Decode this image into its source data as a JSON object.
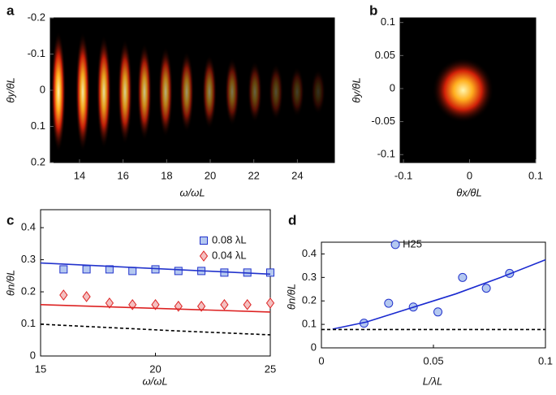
{
  "chart_data": [
    {
      "type": "heatmap",
      "panel": "a",
      "x_label": "ω/ωL",
      "y_label": "θy/θL",
      "xlim": [
        12.66,
        25.7
      ],
      "ylim": [
        -0.2,
        0.2
      ],
      "y_inverted": true,
      "xticks": [
        14,
        16,
        18,
        20,
        22,
        24
      ],
      "yticks": [
        -0.2,
        -0.1,
        0,
        0.1,
        0.2
      ]
    },
    {
      "type": "heatmap",
      "panel": "b",
      "x_label": "θx/θL",
      "y_label": "θy/θL",
      "xlim": [
        -0.105,
        0.1
      ],
      "ylim": [
        -0.112,
        0.107
      ],
      "xticks": [
        -0.1,
        0,
        0.1
      ],
      "yticks": [
        -0.1,
        -0.05,
        0,
        0.05,
        0.1
      ]
    },
    {
      "type": "scatter",
      "panel": "c",
      "x_label": "ω/ωL",
      "y_label": "θn/θL",
      "xlim": [
        15,
        25
      ],
      "ylim": [
        0,
        0.456
      ],
      "xticks": [
        15,
        20,
        25
      ],
      "yticks": [
        0,
        0.1,
        0.2,
        0.3,
        0.4
      ],
      "legend": "upper right",
      "series": [
        {
          "name": "0.08 λL",
          "marker": "square",
          "line": "none",
          "color": "#2233cc",
          "fill": "#b4c8f0",
          "x": [
            16,
            17,
            18,
            19,
            20,
            21,
            22,
            23,
            24,
            25
          ],
          "values": [
            0.27,
            0.27,
            0.27,
            0.265,
            0.27,
            0.265,
            0.265,
            0.26,
            0.26,
            0.26
          ]
        },
        {
          "name": "0.04 λL",
          "marker": "diamond",
          "line": "none",
          "color": "#dd2222",
          "fill": "#f4c0c0",
          "x": [
            16,
            17,
            18,
            19,
            20,
            21,
            22,
            23,
            24,
            25
          ],
          "values": [
            0.19,
            0.185,
            0.165,
            0.16,
            0.16,
            0.155,
            0.155,
            0.16,
            0.16,
            0.165
          ]
        },
        {
          "marker": "none",
          "line": "solid",
          "color": "#2233cc",
          "x": [
            15,
            25
          ],
          "values": [
            0.29,
            0.255
          ]
        },
        {
          "marker": "none",
          "line": "solid",
          "color": "#dd2222",
          "x": [
            15,
            25
          ],
          "values": [
            0.16,
            0.137
          ]
        },
        {
          "marker": "none",
          "line": "dashed",
          "color": "#000000",
          "x": [
            15,
            17,
            19,
            21,
            23,
            25
          ],
          "values": [
            0.099,
            0.092,
            0.085,
            0.078,
            0.072,
            0.066
          ]
        }
      ]
    },
    {
      "type": "scatter",
      "panel": "d",
      "x_label": "L/λL",
      "y_label": "θn/θL",
      "xlim": [
        0,
        0.1
      ],
      "ylim": [
        0,
        0.45
      ],
      "xticks": [
        0,
        0.05,
        0.1
      ],
      "yticks": [
        0,
        0.1,
        0.2,
        0.3,
        0.4
      ],
      "legend": "inline",
      "series": [
        {
          "marker": "circle",
          "line": "none",
          "color": "#2233cc",
          "fill": "#b4c8f0",
          "x": [
            0.019,
            0.03,
            0.041,
            0.052,
            0.063,
            0.0736,
            0.084
          ],
          "values": [
            0.105,
            0.19,
            0.174,
            0.153,
            0.3,
            0.254,
            0.317
          ]
        },
        {
          "name": "H25",
          "marker": "circle",
          "line": "none",
          "color": "#2233cc",
          "fill": "#b4c8f0",
          "x": [
            0.033
          ],
          "values": [
            0.44
          ]
        },
        {
          "marker": "none",
          "line": "solid",
          "color": "#1a2ad0",
          "x": [
            0.005,
            0.02,
            0.04,
            0.06,
            0.08,
            0.1
          ],
          "values": [
            0.08,
            0.11,
            0.17,
            0.23,
            0.3,
            0.375
          ]
        },
        {
          "marker": "none",
          "line": "dashed",
          "color": "#000000",
          "x": [
            0,
            0.1
          ],
          "values": [
            0.078,
            0.078
          ]
        }
      ]
    }
  ]
}
